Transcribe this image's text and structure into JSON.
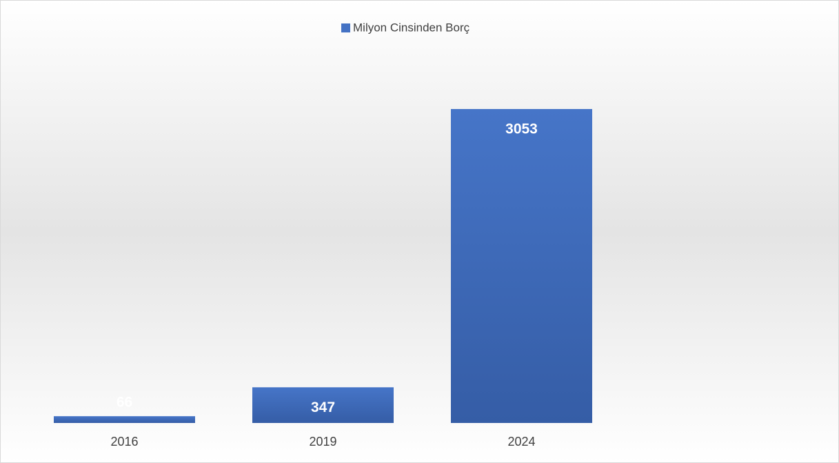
{
  "chart_data": {
    "type": "bar",
    "legend": "Milyon Cinsinden Borç",
    "categories": [
      "2016",
      "2019",
      "2024"
    ],
    "values": [
      66,
      347,
      3053
    ],
    "color": "#4472c4"
  }
}
